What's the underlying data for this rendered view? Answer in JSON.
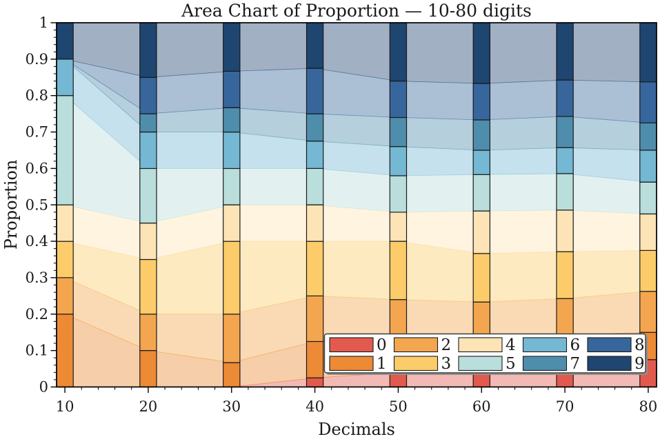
{
  "figure": {
    "background": "#ffffff",
    "text_color": "#1a1a1a"
  },
  "chart_data": {
    "type": "area",
    "variant": "stacked proportion area chart with opaque stacked-bar overlay at each x position",
    "title": "Area Chart of Proportion — 10-80 digits",
    "xlabel": "Decimals",
    "ylabel": "Proportion",
    "x": [
      10,
      20,
      30,
      40,
      50,
      60,
      70,
      80
    ],
    "xlim": [
      9,
      81
    ],
    "ylim": [
      0,
      1
    ],
    "x_tick_labels": [
      "10",
      "20",
      "30",
      "40",
      "50",
      "60",
      "70",
      "80"
    ],
    "y_ticks": [
      0,
      0.1,
      0.2,
      0.3,
      0.4,
      0.5,
      0.6,
      0.7,
      0.8,
      0.9,
      1
    ],
    "y_tick_labels": [
      "0",
      "0.1",
      "0.2",
      "0.3",
      "0.4",
      "0.5",
      "0.6",
      "0.7",
      "0.8",
      "0.9",
      "1"
    ],
    "x_minor_step": 2,
    "y_minor_step": 0.02,
    "grid": false,
    "area_alpha": 0.42,
    "bar_overlay": {
      "width": 2,
      "edge_color": "#1a1a1a"
    },
    "legend": {
      "position": "lower right",
      "columns": 5,
      "rows": 2,
      "order": "column-major"
    },
    "series": [
      {
        "name": "0",
        "color": "#e25a4e",
        "values": [
          0,
          0,
          0,
          0.025,
          0.04,
          0.05,
          0.0571,
          0.075
        ]
      },
      {
        "name": "1",
        "color": "#ed8a35",
        "values": [
          0.2,
          0.1,
          0.0667,
          0.1,
          0.1,
          0.0833,
          0.0857,
          0.075
        ]
      },
      {
        "name": "2",
        "color": "#f3a64f",
        "values": [
          0.1,
          0.1,
          0.1333,
          0.125,
          0.1,
          0.1,
          0.1,
          0.1125
        ]
      },
      {
        "name": "3",
        "color": "#fbcc69",
        "values": [
          0.1,
          0.15,
          0.2,
          0.15,
          0.16,
          0.1333,
          0.1286,
          0.1125
        ]
      },
      {
        "name": "4",
        "color": "#fce4b6",
        "values": [
          0.1,
          0.1,
          0.1,
          0.1,
          0.08,
          0.1167,
          0.1143,
          0.1
        ]
      },
      {
        "name": "5",
        "color": "#b9dedc",
        "values": [
          0.3,
          0.15,
          0.1,
          0.1,
          0.1,
          0.1,
          0.1,
          0.0875
        ]
      },
      {
        "name": "6",
        "color": "#74b8d3",
        "values": [
          0.1,
          0.1,
          0.1,
          0.075,
          0.08,
          0.0667,
          0.0714,
          0.0875
        ]
      },
      {
        "name": "7",
        "color": "#4f8dac",
        "values": [
          0,
          0.05,
          0.0667,
          0.075,
          0.08,
          0.0833,
          0.0857,
          0.075
        ]
      },
      {
        "name": "8",
        "color": "#37669c",
        "values": [
          0,
          0.1,
          0.1,
          0.125,
          0.1,
          0.1,
          0.1,
          0.1125
        ]
      },
      {
        "name": "9",
        "color": "#1f4571",
        "values": [
          0.1,
          0.15,
          0.1333,
          0.125,
          0.16,
          0.1667,
          0.1571,
          0.1625
        ]
      }
    ]
  }
}
